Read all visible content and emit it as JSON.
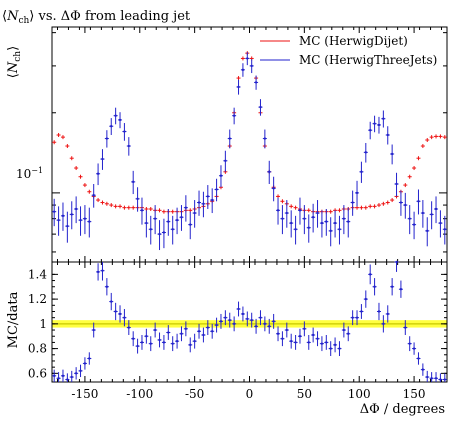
{
  "chart_data": [
    {
      "type": "scatter",
      "title": "⟨N_ch⟩ vs. ΔΦ from leading jet",
      "title_parts": {
        "open": "⟨",
        "symbol": "N",
        "subscript": "ch",
        "close": "⟩",
        "rest": " vs. ΔΦ from leading jet"
      },
      "ylabel_parts": {
        "open": "⟨",
        "symbol": "N",
        "subscript": "ch",
        "close": "⟩"
      },
      "xlabel": "",
      "xlim": [
        -180,
        180
      ],
      "yscale": "log",
      "ylim": [
        0.055,
        0.42
      ],
      "y_tick_label": "10",
      "y_tick_label_exp": "−1",
      "y_tick_value": 0.1,
      "legend_placement": "top-right",
      "series": [
        {
          "name": "MC (HerwigDijet)",
          "color": "#ee1111",
          "x": [
            -178,
            -174,
            -170,
            -166,
            -162,
            -158,
            -154,
            -150,
            -146,
            -142,
            -138,
            -134,
            -130,
            -126,
            -122,
            -118,
            -114,
            -110,
            -106,
            -102,
            -98,
            -94,
            -90,
            -86,
            -82,
            -78,
            -74,
            -70,
            -66,
            -62,
            -58,
            -54,
            -50,
            -46,
            -42,
            -38,
            -34,
            -30,
            -26,
            -22,
            -18,
            -14,
            -10,
            -6,
            -2,
            2,
            6,
            10,
            14,
            18,
            22,
            26,
            30,
            34,
            38,
            42,
            46,
            50,
            54,
            58,
            62,
            66,
            70,
            74,
            78,
            82,
            86,
            90,
            94,
            98,
            102,
            106,
            110,
            114,
            118,
            122,
            126,
            130,
            134,
            138,
            142,
            146,
            150,
            154,
            158,
            162,
            166,
            170,
            174,
            178
          ],
          "values": [
            0.155,
            0.165,
            0.162,
            0.15,
            0.135,
            0.124,
            0.115,
            0.107,
            0.101,
            0.097,
            0.094,
            0.092,
            0.091,
            0.09,
            0.089,
            0.089,
            0.088,
            0.088,
            0.088,
            0.088,
            0.088,
            0.087,
            0.087,
            0.086,
            0.086,
            0.085,
            0.085,
            0.085,
            0.085,
            0.085,
            0.086,
            0.086,
            0.087,
            0.088,
            0.089,
            0.091,
            0.093,
            0.097,
            0.105,
            0.12,
            0.15,
            0.2,
            0.27,
            0.32,
            0.335,
            0.32,
            0.27,
            0.2,
            0.15,
            0.12,
            0.105,
            0.097,
            0.093,
            0.091,
            0.089,
            0.088,
            0.087,
            0.086,
            0.086,
            0.085,
            0.085,
            0.085,
            0.085,
            0.085,
            0.086,
            0.086,
            0.087,
            0.087,
            0.088,
            0.088,
            0.088,
            0.088,
            0.089,
            0.089,
            0.09,
            0.091,
            0.092,
            0.094,
            0.097,
            0.101,
            0.107,
            0.115,
            0.124,
            0.135,
            0.15,
            0.158,
            0.162,
            0.163,
            0.163,
            0.162
          ]
        },
        {
          "name": "MC (HerwigThreeJets)",
          "color": "#2222cc",
          "x": [
            -178,
            -174,
            -170,
            -166,
            -162,
            -158,
            -154,
            -150,
            -146,
            -142,
            -138,
            -134,
            -130,
            -126,
            -122,
            -118,
            -114,
            -110,
            -106,
            -102,
            -98,
            -94,
            -90,
            -86,
            -82,
            -78,
            -74,
            -70,
            -66,
            -62,
            -58,
            -54,
            -50,
            -46,
            -42,
            -38,
            -34,
            -30,
            -26,
            -22,
            -18,
            -14,
            -10,
            -6,
            -2,
            2,
            6,
            10,
            14,
            18,
            22,
            26,
            30,
            34,
            38,
            42,
            46,
            50,
            54,
            58,
            62,
            66,
            70,
            74,
            78,
            82,
            86,
            90,
            94,
            98,
            102,
            106,
            110,
            114,
            118,
            122,
            126,
            130,
            134,
            138,
            142,
            146,
            150,
            154,
            158,
            162,
            166,
            170,
            174,
            178
          ],
          "values": [
            0.085,
            0.079,
            0.082,
            0.075,
            0.083,
            0.087,
            0.079,
            0.08,
            0.078,
            0.098,
            0.118,
            0.134,
            0.16,
            0.178,
            0.195,
            0.188,
            0.17,
            0.15,
            0.11,
            0.095,
            0.086,
            0.077,
            0.073,
            0.08,
            0.07,
            0.071,
            0.078,
            0.073,
            0.079,
            0.081,
            0.088,
            0.076,
            0.084,
            0.092,
            0.091,
            0.097,
            0.094,
            0.103,
            0.116,
            0.132,
            0.16,
            0.195,
            0.25,
            0.29,
            0.32,
            0.3,
            0.26,
            0.21,
            0.16,
            0.12,
            0.104,
            0.086,
            0.08,
            0.084,
            0.077,
            0.073,
            0.086,
            0.08,
            0.074,
            0.081,
            0.084,
            0.077,
            0.078,
            0.072,
            0.077,
            0.073,
            0.08,
            0.078,
            0.092,
            0.1,
            0.12,
            0.142,
            0.172,
            0.182,
            0.18,
            0.19,
            0.165,
            0.14,
            0.108,
            0.092,
            0.09,
            0.08,
            0.076,
            0.093,
            0.084,
            0.072,
            0.083,
            0.087,
            0.077,
            0.073
          ],
          "errors": [
            0.01,
            0.01,
            0.01,
            0.01,
            0.01,
            0.01,
            0.01,
            0.01,
            0.01,
            0.01,
            0.011,
            0.012,
            0.012,
            0.013,
            0.014,
            0.013,
            0.013,
            0.012,
            0.011,
            0.01,
            0.01,
            0.009,
            0.009,
            0.01,
            0.009,
            0.009,
            0.009,
            0.009,
            0.009,
            0.009,
            0.01,
            0.009,
            0.01,
            0.01,
            0.01,
            0.01,
            0.01,
            0.01,
            0.011,
            0.012,
            0.013,
            0.014,
            0.016,
            0.017,
            0.018,
            0.018,
            0.016,
            0.015,
            0.013,
            0.012,
            0.011,
            0.01,
            0.01,
            0.01,
            0.009,
            0.009,
            0.01,
            0.01,
            0.009,
            0.01,
            0.01,
            0.009,
            0.009,
            0.009,
            0.009,
            0.009,
            0.01,
            0.01,
            0.01,
            0.011,
            0.011,
            0.012,
            0.013,
            0.013,
            0.013,
            0.014,
            0.013,
            0.012,
            0.011,
            0.01,
            0.01,
            0.01,
            0.009,
            0.01,
            0.01,
            0.009,
            0.01,
            0.01,
            0.009,
            0.009
          ]
        }
      ]
    },
    {
      "type": "scatter",
      "title": "",
      "ylabel": "MC/data",
      "xlabel": "ΔΦ / degrees",
      "xlim": [
        -180,
        180
      ],
      "ylim": [
        0.53,
        1.5
      ],
      "x_ticks": [
        -150,
        -100,
        -50,
        0,
        50,
        100,
        150
      ],
      "x_tick_labels": [
        "-150",
        "-100",
        "-50",
        "0",
        "50",
        "100",
        "150"
      ],
      "y_ticks": [
        0.6,
        0.8,
        1,
        1.2,
        1.4
      ],
      "y_tick_labels": [
        "0.6",
        "0.8",
        "1",
        "1.2",
        "1.4"
      ],
      "reference_line": 1.0,
      "band": [
        0.97,
        1.03
      ],
      "band_color": "#ffff00",
      "line_color": "#c8c800",
      "series": [
        {
          "name": "MC (HerwigThreeJets)",
          "color": "#2222cc",
          "x": [
            -178,
            -174,
            -170,
            -166,
            -162,
            -158,
            -154,
            -150,
            -146,
            -142,
            -138,
            -134,
            -130,
            -126,
            -122,
            -118,
            -114,
            -110,
            -106,
            -102,
            -98,
            -94,
            -90,
            -86,
            -82,
            -78,
            -74,
            -70,
            -66,
            -62,
            -58,
            -54,
            -50,
            -46,
            -42,
            -38,
            -34,
            -30,
            -26,
            -22,
            -18,
            -14,
            -10,
            -6,
            -2,
            2,
            6,
            10,
            14,
            18,
            22,
            26,
            30,
            34,
            38,
            42,
            46,
            50,
            54,
            58,
            62,
            66,
            70,
            74,
            78,
            82,
            86,
            90,
            94,
            98,
            102,
            106,
            110,
            114,
            118,
            122,
            126,
            130,
            134,
            138,
            142,
            146,
            150,
            154,
            158,
            162,
            166,
            170,
            174,
            178
          ],
          "values": [
            0.58,
            0.56,
            0.58,
            0.55,
            0.57,
            0.6,
            0.62,
            0.68,
            0.72,
            0.95,
            1.42,
            1.43,
            1.3,
            1.18,
            1.1,
            1.08,
            1.05,
            0.97,
            0.88,
            0.82,
            0.85,
            0.9,
            0.84,
            0.95,
            0.87,
            0.85,
            0.93,
            0.84,
            0.86,
            0.92,
            0.96,
            0.83,
            0.86,
            0.94,
            0.91,
            0.97,
            0.94,
            0.99,
            1.02,
            1.05,
            1.03,
            1.0,
            1.12,
            1.08,
            1.04,
            1.03,
            0.98,
            1.05,
            1.0,
            0.98,
            1.02,
            0.92,
            0.88,
            0.95,
            0.86,
            0.85,
            0.9,
            0.96,
            0.85,
            0.91,
            0.88,
            0.84,
            0.85,
            0.8,
            0.83,
            0.8,
            0.95,
            0.92,
            1.05,
            1.05,
            1.1,
            1.2,
            1.4,
            1.3,
            1.1,
            1.0,
            1.08,
            1.3,
            1.5,
            1.28,
            0.97,
            0.84,
            0.8,
            0.72,
            0.63,
            0.57,
            0.56,
            0.56,
            0.55,
            0.55
          ],
          "errors": [
            0.05,
            0.05,
            0.05,
            0.05,
            0.05,
            0.05,
            0.05,
            0.05,
            0.05,
            0.06,
            0.07,
            0.08,
            0.07,
            0.07,
            0.07,
            0.07,
            0.07,
            0.06,
            0.06,
            0.06,
            0.06,
            0.06,
            0.06,
            0.06,
            0.06,
            0.06,
            0.06,
            0.06,
            0.06,
            0.06,
            0.06,
            0.06,
            0.06,
            0.06,
            0.06,
            0.06,
            0.06,
            0.06,
            0.06,
            0.06,
            0.06,
            0.06,
            0.06,
            0.06,
            0.06,
            0.06,
            0.06,
            0.06,
            0.06,
            0.06,
            0.06,
            0.06,
            0.06,
            0.06,
            0.06,
            0.06,
            0.06,
            0.06,
            0.06,
            0.06,
            0.06,
            0.06,
            0.06,
            0.06,
            0.06,
            0.06,
            0.06,
            0.06,
            0.06,
            0.06,
            0.06,
            0.07,
            0.08,
            0.07,
            0.07,
            0.07,
            0.07,
            0.07,
            0.08,
            0.07,
            0.06,
            0.06,
            0.05,
            0.05,
            0.05,
            0.05,
            0.05,
            0.05,
            0.05,
            0.05
          ]
        }
      ]
    }
  ]
}
